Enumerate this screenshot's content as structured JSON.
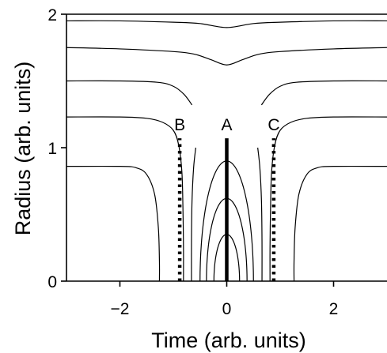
{
  "chart_data": {
    "type": "line",
    "xlabel": "Time (arb. units)",
    "ylabel": "Radius (arb. units)",
    "xlim": [
      -3.0,
      3.0
    ],
    "ylim": [
      0,
      2
    ],
    "xticks": [
      -2,
      0,
      2
    ],
    "yticks": [
      0,
      1,
      2
    ],
    "grid": false,
    "legend": "none",
    "contours": [
      {
        "kind": "open",
        "points": [
          [
            -3.0,
            1.95
          ],
          [
            -2.0,
            1.95
          ],
          [
            -1.0,
            1.94
          ],
          [
            -0.5,
            1.93
          ],
          [
            0,
            1.9
          ],
          [
            0.5,
            1.93
          ],
          [
            1.0,
            1.94
          ],
          [
            2.0,
            1.95
          ],
          [
            3.0,
            1.95
          ]
        ]
      },
      {
        "kind": "open",
        "points": [
          [
            -3.0,
            1.75
          ],
          [
            -2.0,
            1.74
          ],
          [
            -1.0,
            1.72
          ],
          [
            -0.6,
            1.7
          ],
          [
            -0.3,
            1.66
          ],
          [
            0,
            1.62
          ],
          [
            0.3,
            1.66
          ],
          [
            0.6,
            1.7
          ],
          [
            1.0,
            1.72
          ],
          [
            2.0,
            1.74
          ],
          [
            3.0,
            1.75
          ]
        ]
      },
      {
        "kind": "open",
        "points": [
          [
            -3.0,
            1.5
          ],
          [
            -2.0,
            1.5
          ],
          [
            -1.3,
            1.49
          ],
          [
            -1.0,
            1.46
          ],
          [
            -0.8,
            1.4
          ],
          [
            -0.65,
            1.32
          ]
        ]
      },
      {
        "kind": "open",
        "points": [
          [
            0.65,
            1.32
          ],
          [
            0.8,
            1.4
          ],
          [
            1.0,
            1.46
          ],
          [
            1.3,
            1.49
          ],
          [
            2.0,
            1.5
          ],
          [
            3.0,
            1.5
          ]
        ]
      },
      {
        "kind": "open",
        "points": [
          [
            -3.0,
            1.23
          ],
          [
            -2.0,
            1.23
          ],
          [
            -1.5,
            1.22
          ],
          [
            -1.2,
            1.19
          ],
          [
            -1.0,
            1.13
          ],
          [
            -0.9,
            1.02
          ],
          [
            -0.84,
            0.82
          ],
          [
            -0.82,
            0.55
          ],
          [
            -0.81,
            0.25
          ],
          [
            -0.81,
            0.0
          ]
        ]
      },
      {
        "kind": "open",
        "points": [
          [
            0.81,
            0.0
          ],
          [
            0.81,
            0.25
          ],
          [
            0.82,
            0.55
          ],
          [
            0.84,
            0.82
          ],
          [
            0.9,
            1.02
          ],
          [
            1.0,
            1.13
          ],
          [
            1.2,
            1.19
          ],
          [
            1.5,
            1.22
          ],
          [
            2.0,
            1.23
          ],
          [
            3.0,
            1.23
          ]
        ]
      },
      {
        "kind": "open",
        "points": [
          [
            -0.58,
            1.0
          ],
          [
            -0.62,
            0.85
          ],
          [
            -0.65,
            0.6
          ],
          [
            -0.66,
            0.3
          ],
          [
            -0.66,
            0.0
          ]
        ]
      },
      {
        "kind": "open",
        "points": [
          [
            0.58,
            1.0
          ],
          [
            0.62,
            0.85
          ],
          [
            0.65,
            0.6
          ],
          [
            0.66,
            0.3
          ],
          [
            0.66,
            0.0
          ]
        ]
      },
      {
        "kind": "open",
        "points": [
          [
            -3.0,
            0.86
          ],
          [
            -2.0,
            0.86
          ],
          [
            -1.7,
            0.85
          ],
          [
            -1.5,
            0.8
          ],
          [
            -1.35,
            0.65
          ],
          [
            -1.28,
            0.4
          ],
          [
            -1.26,
            0.15
          ],
          [
            -1.26,
            0.0
          ]
        ]
      },
      {
        "kind": "open",
        "points": [
          [
            1.26,
            0.0
          ],
          [
            1.26,
            0.15
          ],
          [
            1.28,
            0.4
          ],
          [
            1.35,
            0.65
          ],
          [
            1.5,
            0.8
          ],
          [
            1.7,
            0.85
          ],
          [
            2.0,
            0.86
          ],
          [
            3.0,
            0.86
          ]
        ]
      },
      {
        "kind": "dome",
        "peak": 0.9,
        "halfwidth": 0.5
      },
      {
        "kind": "dome",
        "peak": 0.62,
        "halfwidth": 0.38
      },
      {
        "kind": "dome",
        "peak": 0.35,
        "halfwidth": 0.24
      }
    ],
    "markers": [
      {
        "label": "A",
        "x": 0.0,
        "y_from": 0.0,
        "y_to": 1.07,
        "style": "solid"
      },
      {
        "label": "B",
        "x": -0.88,
        "y_from": 0.0,
        "y_to": 1.07,
        "style": "dotted"
      },
      {
        "label": "C",
        "x": 0.88,
        "y_from": 0.0,
        "y_to": 1.07,
        "style": "dotted"
      }
    ]
  }
}
